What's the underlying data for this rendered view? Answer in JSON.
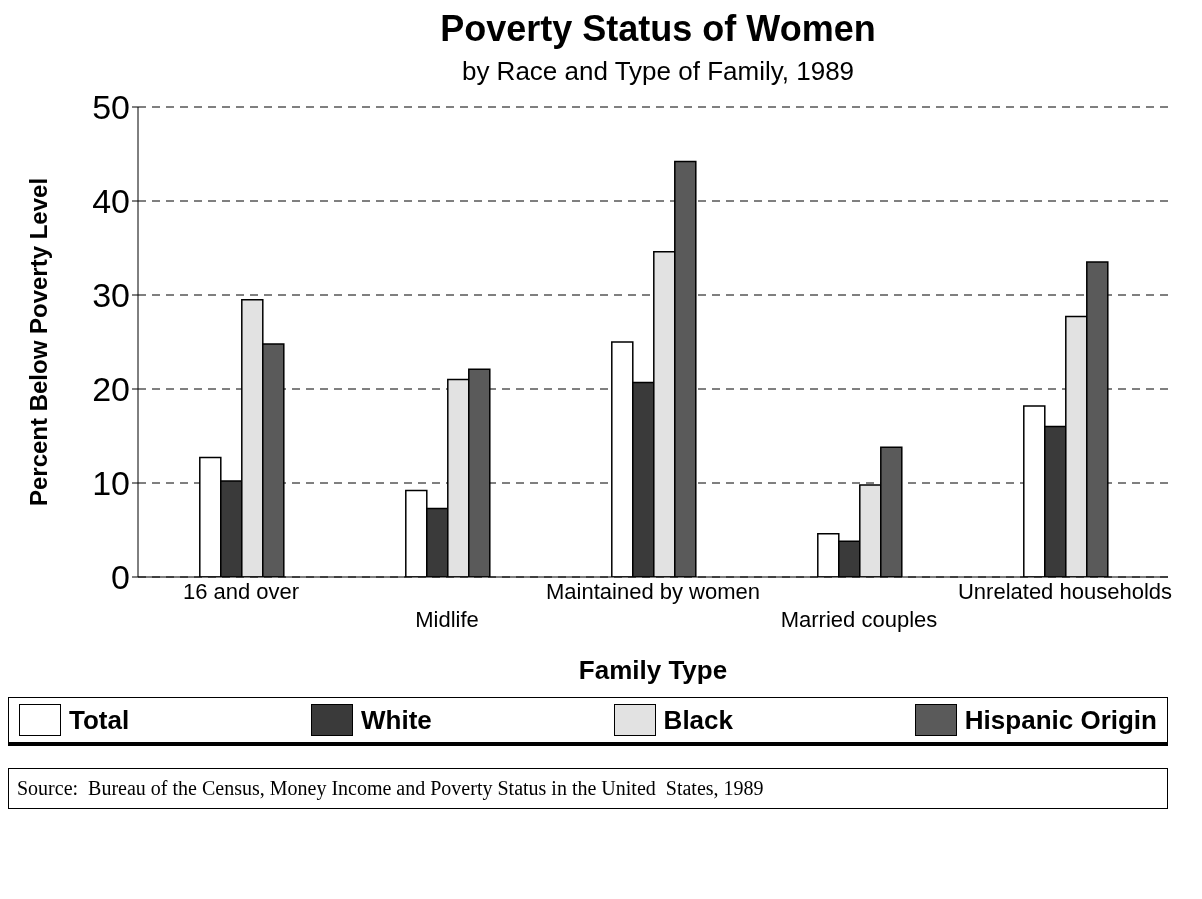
{
  "chart_data": {
    "type": "bar",
    "title": "Poverty Status of Women",
    "subtitle": "by Race and Type of Family, 1989",
    "xlabel": "Family Type",
    "ylabel": "Percent Below Poverty Level",
    "categories": [
      "16 and over",
      "Midlife",
      "Maintained by women",
      "Married couples",
      "Unrelated households"
    ],
    "series": [
      {
        "name": "Total",
        "color": "#ffffff",
        "values": [
          12.7,
          9.2,
          25.0,
          4.6,
          18.2
        ]
      },
      {
        "name": "White",
        "color": "#3a3a3a",
        "values": [
          10.2,
          7.3,
          20.7,
          3.8,
          16.0
        ]
      },
      {
        "name": "Black",
        "color": "#e2e2e2",
        "values": [
          29.5,
          21.0,
          34.6,
          9.8,
          27.7
        ]
      },
      {
        "name": "Hispanic Origin",
        "color": "#5a5a5a",
        "values": [
          24.8,
          22.1,
          44.2,
          13.8,
          33.5
        ]
      }
    ],
    "ylim": [
      0,
      50
    ],
    "yticks": [
      0,
      10,
      20,
      30,
      40,
      50
    ],
    "grid": "y",
    "legend": "bottom",
    "annotations": [
      "Source:  Bureau of the Census, Money Income and Poverty Status in the United  States, 1989"
    ]
  }
}
